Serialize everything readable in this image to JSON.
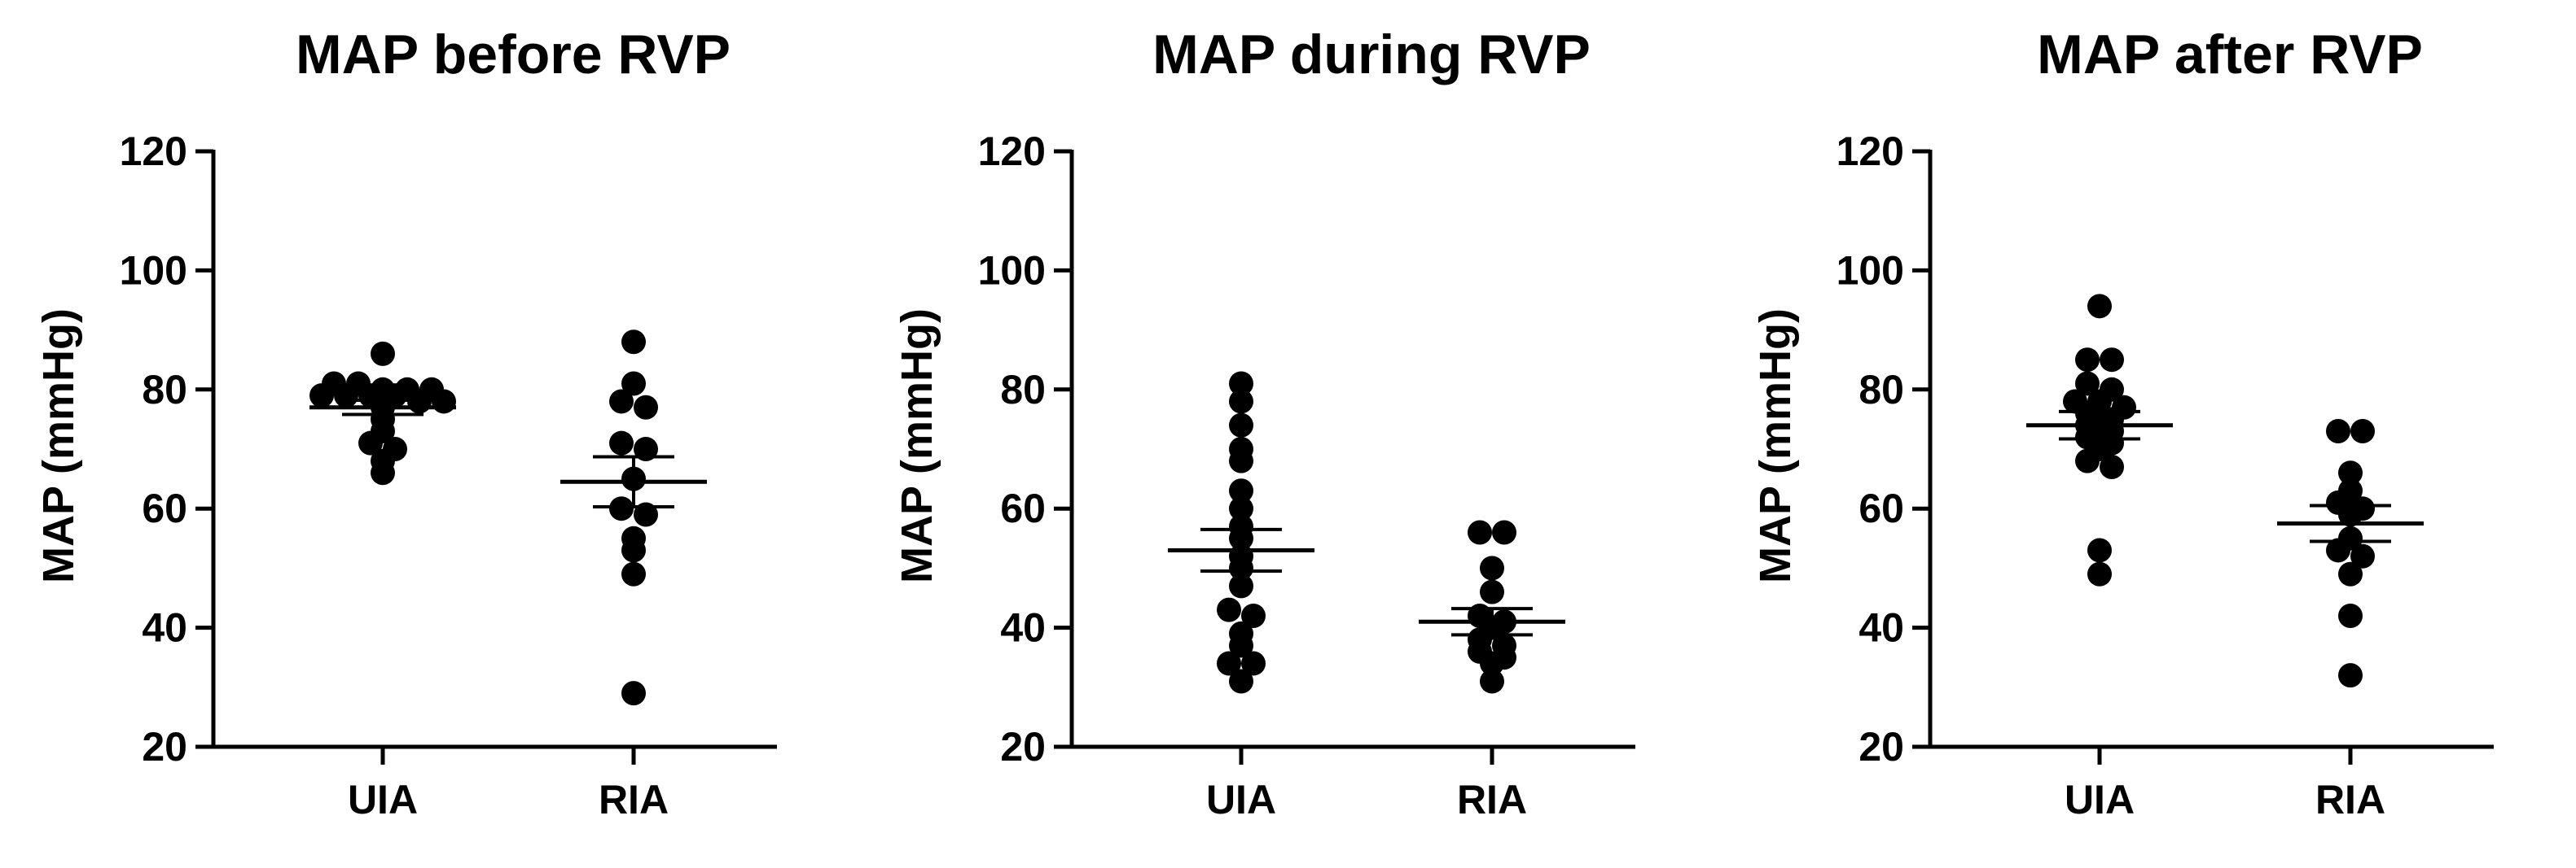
{
  "chart_data": [
    {
      "type": "scatter",
      "title": "MAP before RVP",
      "ylabel": "MAP (mmHg)",
      "xlabel": "",
      "ylim": [
        20,
        120
      ],
      "yticks": [
        20,
        40,
        60,
        80,
        100,
        120
      ],
      "categories": [
        "UIA",
        "RIA"
      ],
      "series": [
        {
          "category": "UIA",
          "values": [
            86,
            81,
            81,
            80,
            80,
            80,
            79,
            79,
            79,
            79,
            78,
            78,
            77,
            75,
            73,
            71,
            70,
            68,
            66
          ],
          "mean": 77,
          "sem": 1.2
        },
        {
          "category": "RIA",
          "values": [
            88,
            81,
            78,
            77,
            71,
            70,
            65,
            60,
            59,
            55,
            53,
            49,
            29
          ],
          "mean": 64.5,
          "sem": 4.2
        }
      ]
    },
    {
      "type": "scatter",
      "title": "MAP during RVP",
      "ylabel": "MAP (mmHg)",
      "xlabel": "",
      "ylim": [
        20,
        120
      ],
      "yticks": [
        20,
        40,
        60,
        80,
        100,
        120
      ],
      "categories": [
        "UIA",
        "RIA"
      ],
      "series": [
        {
          "category": "UIA",
          "values": [
            81,
            78,
            74,
            70,
            68,
            63,
            60,
            57,
            55,
            52,
            50,
            47,
            43,
            42,
            39,
            37,
            34,
            34,
            31
          ],
          "mean": 53,
          "sem": 3.5
        },
        {
          "category": "RIA",
          "values": [
            56,
            56,
            50,
            46,
            42,
            41,
            40,
            38,
            37,
            36,
            35,
            34,
            31
          ],
          "mean": 41,
          "sem": 2.2
        }
      ]
    },
    {
      "type": "scatter",
      "title": "MAP after RVP",
      "ylabel": "MAP (mmHg)",
      "xlabel": "",
      "ylim": [
        20,
        120
      ],
      "yticks": [
        20,
        40,
        60,
        80,
        100,
        120
      ],
      "categories": [
        "UIA",
        "RIA"
      ],
      "series": [
        {
          "category": "UIA",
          "values": [
            94,
            85,
            85,
            81,
            80,
            78,
            78,
            77,
            76,
            75,
            74,
            73,
            72,
            71,
            70,
            68,
            67,
            53,
            49
          ],
          "mean": 74,
          "sem": 2.3
        },
        {
          "category": "RIA",
          "values": [
            73,
            73,
            66,
            63,
            61,
            60,
            59,
            55,
            53,
            52,
            49,
            42,
            32
          ],
          "mean": 57.5,
          "sem": 3.0
        }
      ]
    }
  ]
}
